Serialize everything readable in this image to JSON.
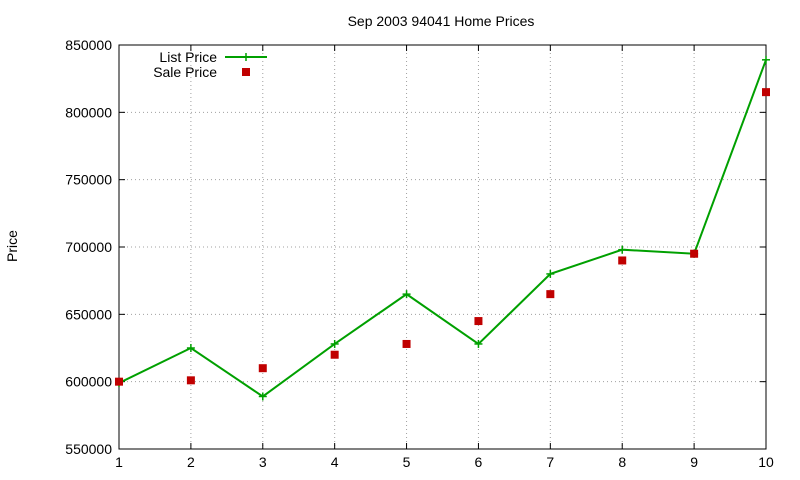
{
  "chart_data": {
    "type": "line",
    "title": "Sep 2003 94041 Home Prices",
    "xlabel": "",
    "ylabel": "Price",
    "x": [
      1,
      2,
      3,
      4,
      5,
      6,
      7,
      8,
      9,
      10
    ],
    "xlim": [
      1,
      10
    ],
    "ylim": [
      550000,
      850000
    ],
    "xticks": [
      1,
      2,
      3,
      4,
      5,
      6,
      7,
      8,
      9,
      10
    ],
    "yticks": [
      550000,
      600000,
      650000,
      700000,
      750000,
      800000,
      850000
    ],
    "grid": true,
    "legend_position": "top-left",
    "series": [
      {
        "name": "List Price",
        "style": "line+cross",
        "color": "#00a000",
        "values": [
          599000,
          625000,
          589000,
          628000,
          665000,
          628000,
          680000,
          698000,
          695000,
          839000
        ]
      },
      {
        "name": "Sale Price",
        "style": "square-points",
        "color": "#c00000",
        "values": [
          600000,
          601000,
          610000,
          620000,
          628000,
          645000,
          665000,
          690000,
          695000,
          815000
        ]
      }
    ]
  }
}
